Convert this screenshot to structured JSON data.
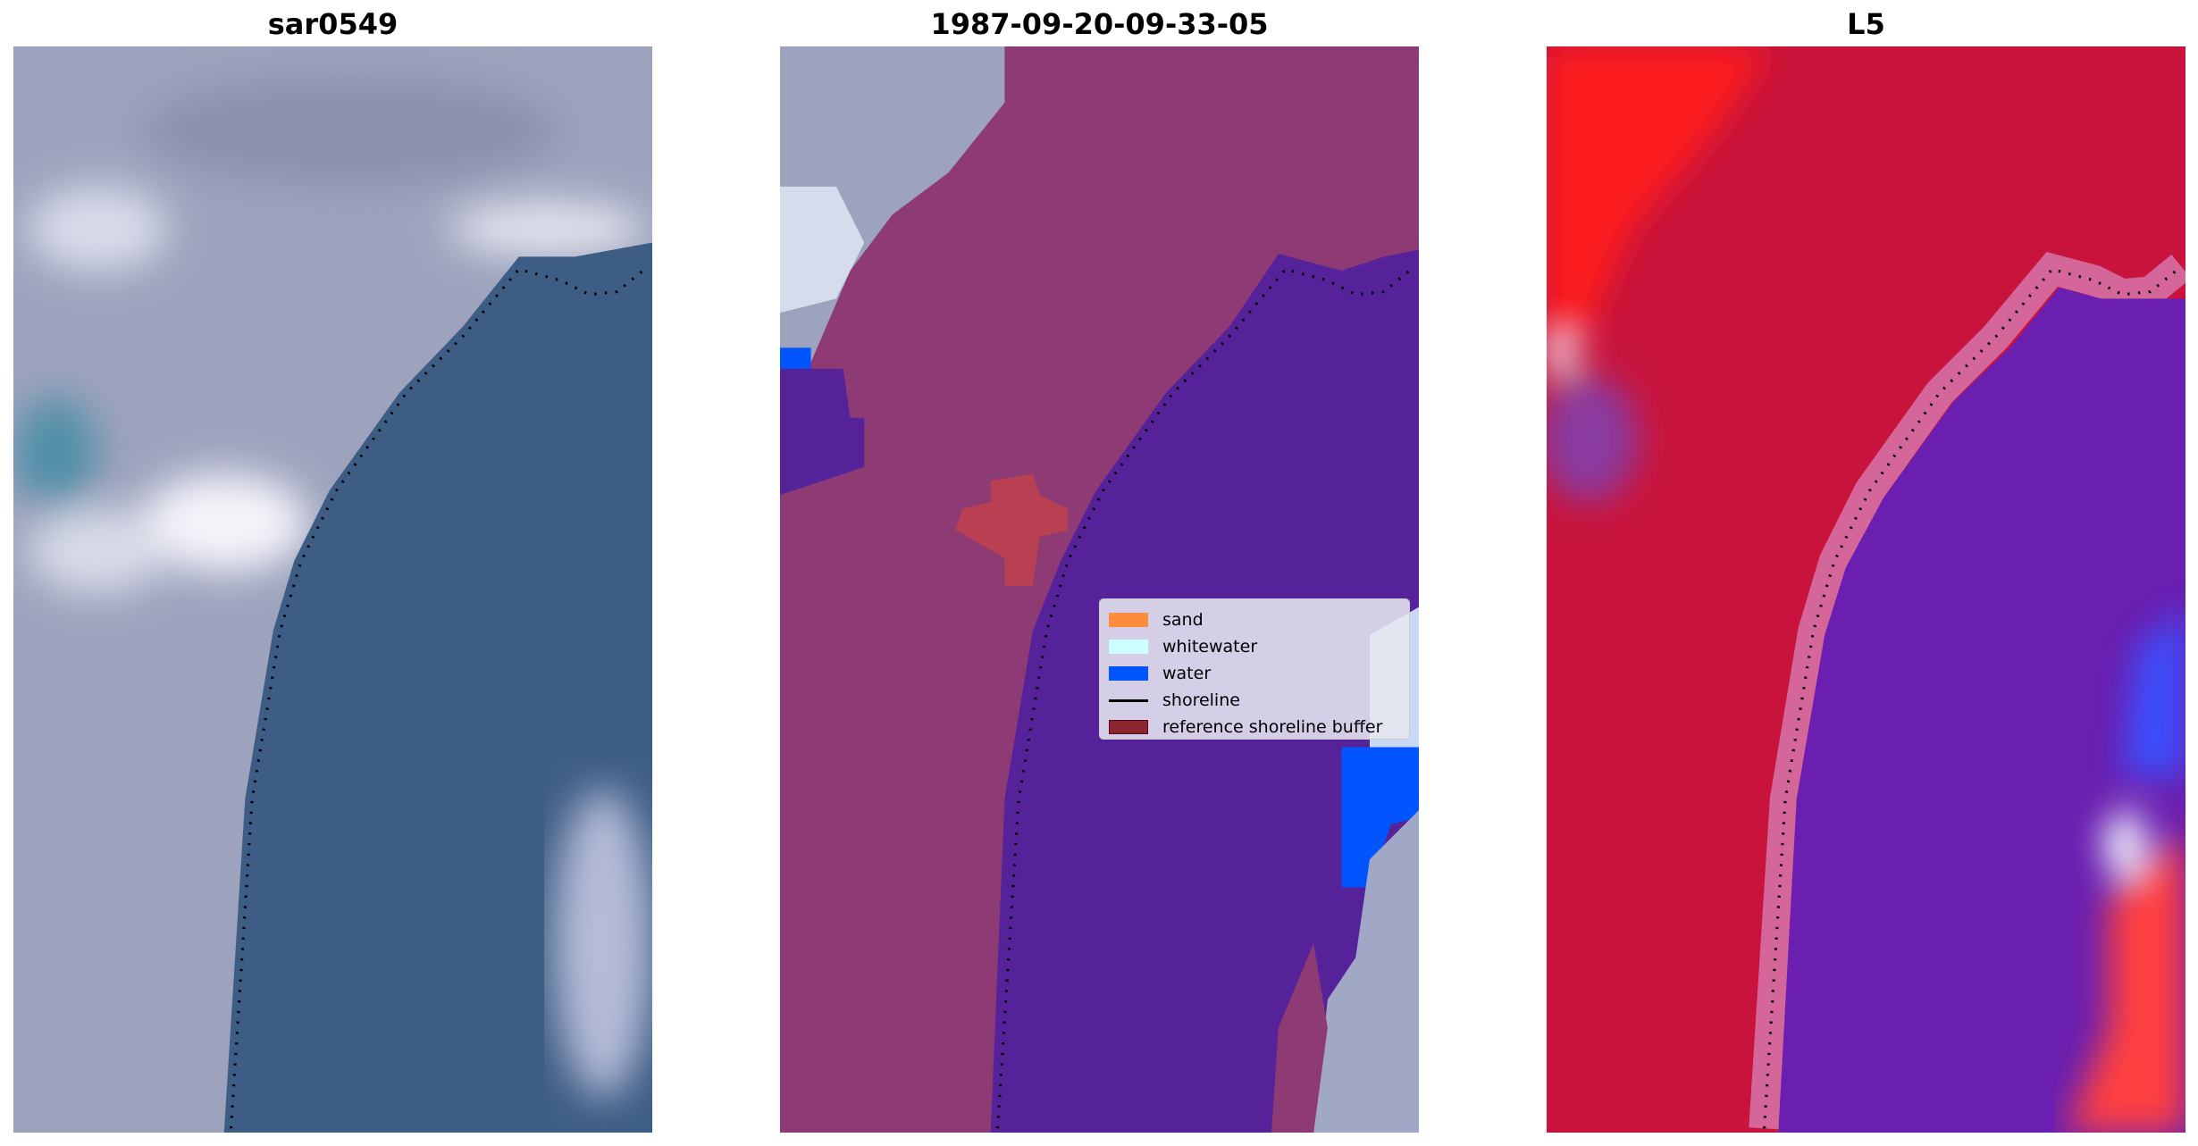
{
  "panels": [
    {
      "title": "sar0549",
      "kind": "rgb-image"
    },
    {
      "title": "1987-09-20-09-33-05",
      "kind": "classified-image"
    },
    {
      "title": "L5",
      "kind": "mndwi-image"
    }
  ],
  "legend": {
    "items": [
      {
        "label": "sand",
        "color": "#ff8c3c"
      },
      {
        "label": "whitewater",
        "color": "#ccffff"
      },
      {
        "label": "water",
        "color": "#0055ff"
      },
      {
        "label": "shoreline",
        "color": "#000000",
        "type": "line"
      },
      {
        "label": "reference shoreline buffer",
        "color": "#8b2530"
      }
    ]
  },
  "colors": {
    "land_rgb": "#9ea3bd",
    "water_rgb": "#3e5d85",
    "land_class": "#8e3a74",
    "water_class": "#55229a",
    "land_index": "#c8143c",
    "water_index": "#6a1fb0"
  }
}
